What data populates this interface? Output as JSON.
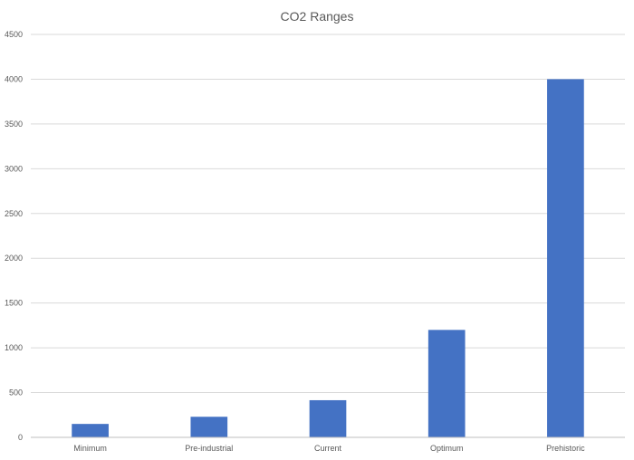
{
  "chart_data": {
    "type": "bar",
    "title": "CO2 Ranges",
    "xlabel": "",
    "ylabel": "",
    "categories": [
      "Minimum",
      "Pre-industrial",
      "Current",
      "Optimum",
      "Prehistoric"
    ],
    "values": [
      150,
      230,
      415,
      1200,
      4000
    ],
    "ylim": [
      0,
      4500
    ],
    "yticks": [
      0,
      500,
      1000,
      1500,
      2000,
      2500,
      3000,
      3500,
      4000,
      4500
    ],
    "grid": true,
    "legend": "none",
    "colors": {
      "bar": "#4472C4",
      "grid": "#D9D9D9",
      "axis": "#BFBFBF",
      "text": "#595959"
    }
  }
}
